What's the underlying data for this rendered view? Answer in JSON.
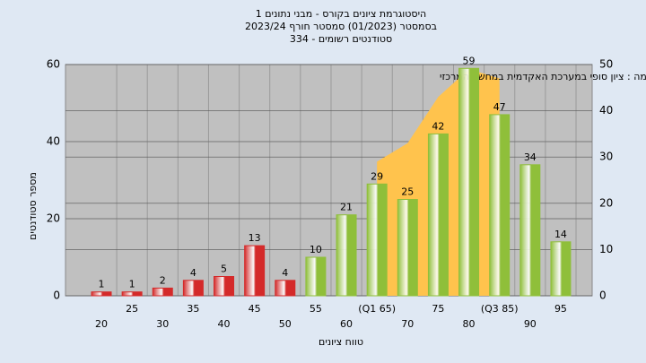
{
  "chart_data": {
    "type": "bar",
    "title": [
      "היסטוגרמת ציונים בקורס - מבני נתונים 1",
      "בסמסטר  (01/2023)  סמסטר חורף  2023/24",
      "סטודנטים רשומים - 334"
    ],
    "annotation": "במשימה : ציון סופי במערכת האקדמית במחשב המרכזי",
    "y_label": "מספר סטודנטים",
    "x_label": "טווח ציונים",
    "categories": [
      "20",
      "25",
      "30",
      "35",
      "40",
      "45",
      "50",
      "55",
      "60",
      "(Q1 65)",
      "70",
      "75",
      "80",
      "(Q3 85)",
      "90",
      "95"
    ],
    "values": [
      1,
      1,
      2,
      4,
      5,
      13,
      4,
      10,
      21,
      29,
      25,
      42,
      59,
      47,
      34,
      14
    ],
    "colors": [
      "#d42a2a",
      "#d42a2a",
      "#d42a2a",
      "#d42a2a",
      "#d42a2a",
      "#d42a2a",
      "#d42a2a",
      "#8fbf3a",
      "#8fbf3a",
      "#8fbf3a",
      "#8fbf3a",
      "#8fbf3a",
      "#8fbf3a",
      "#8fbf3a",
      "#8fbf3a",
      "#8fbf3a"
    ],
    "area": {
      "axis": "y2",
      "color": "#ffc34d",
      "values": [
        null,
        null,
        null,
        null,
        null,
        null,
        null,
        null,
        null,
        29,
        33,
        43,
        49,
        47,
        null,
        null
      ]
    },
    "ylim": [
      0,
      60
    ],
    "yticks": [
      0,
      20,
      40,
      60
    ],
    "y2lim": [
      0,
      50
    ],
    "y2ticks": [
      0,
      10,
      20,
      30,
      40,
      50
    ],
    "grid": true
  }
}
